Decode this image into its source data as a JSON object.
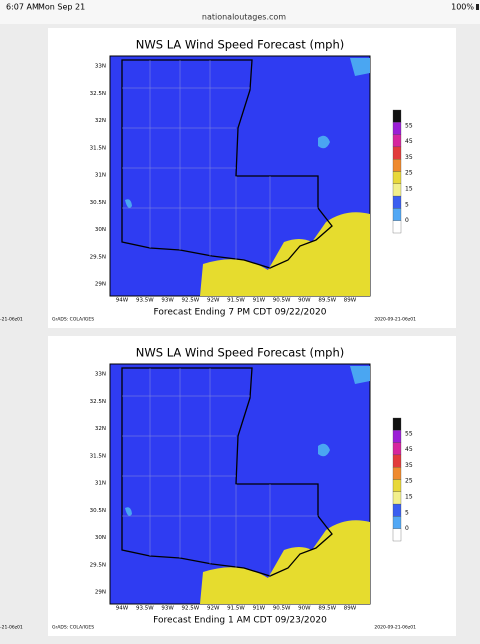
{
  "status_bar": {
    "time": "6:07 AM",
    "date": "Mon Sep 21",
    "battery": "100%"
  },
  "address_bar": {
    "url": "nationaloutages.com"
  },
  "panels": [
    {
      "title": "NWS LA Wind Speed Forecast (mph)",
      "caption": "Forecast Ending 7 PM CDT 09/22/2020",
      "credit": "GrADS: COLA/IGES",
      "timestamp": "2020-09-21-06z01"
    },
    {
      "title": "NWS LA Wind Speed Forecast (mph)",
      "caption": "Forecast Ending 1 AM CDT 09/23/2020",
      "credit": "GrADS: COLA/IGES",
      "timestamp": "2020-09-21-06z01"
    }
  ],
  "edge_text": "-21-06z01",
  "latitude_labels": [
    "33N",
    "32.5N",
    "32N",
    "31.5N",
    "31N",
    "30.5N",
    "30N",
    "29.5N",
    "29N"
  ],
  "longitude_labels": [
    "94W",
    "93.5W",
    "93W",
    "92.5W",
    "92W",
    "91.5W",
    "91W",
    "90.5W",
    "90W",
    "89.5W",
    "89W"
  ],
  "colorbar_labels": [
    "55",
    "45",
    "35",
    "25",
    "15",
    "5",
    "0"
  ]
}
